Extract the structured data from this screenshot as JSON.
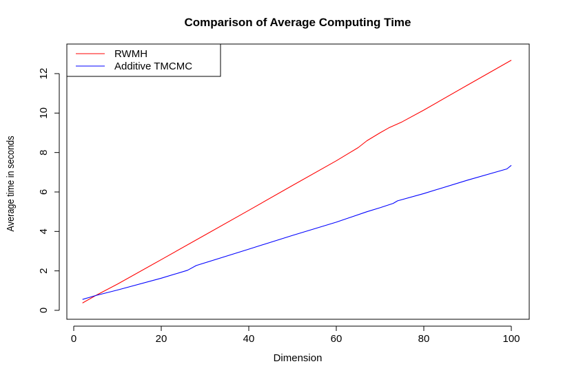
{
  "chart_data": {
    "type": "line",
    "title": "Comparison of Average Computing Time",
    "xlabel": "Dimension",
    "ylabel": "Average time in seconds",
    "xlim": [
      0,
      100
    ],
    "ylim": [
      0,
      12
    ],
    "xticks": [
      0,
      20,
      40,
      60,
      80,
      100
    ],
    "yticks": [
      0,
      2,
      4,
      6,
      8,
      10,
      12
    ],
    "grid": false,
    "legend_position": "top-left",
    "series": [
      {
        "name": "RWMH",
        "color": "#ff0000",
        "x": [
          2,
          5,
          10,
          20,
          30,
          40,
          50,
          60,
          65,
          67,
          70,
          72,
          75,
          80,
          90,
          100
        ],
        "y": [
          0.37,
          0.75,
          1.33,
          2.57,
          3.82,
          5.07,
          6.33,
          7.58,
          8.25,
          8.6,
          9.0,
          9.25,
          9.55,
          10.15,
          11.42,
          12.68
        ]
      },
      {
        "name": "Additive TMCMC",
        "color": "#0000ff",
        "x": [
          2,
          5,
          10,
          20,
          26,
          28,
          40,
          50,
          60,
          67,
          70,
          73,
          74,
          80,
          90,
          99,
          100
        ],
        "y": [
          0.55,
          0.75,
          1.03,
          1.63,
          2.03,
          2.27,
          3.1,
          3.8,
          4.47,
          5.0,
          5.2,
          5.42,
          5.55,
          5.92,
          6.6,
          7.17,
          7.35
        ]
      }
    ]
  }
}
